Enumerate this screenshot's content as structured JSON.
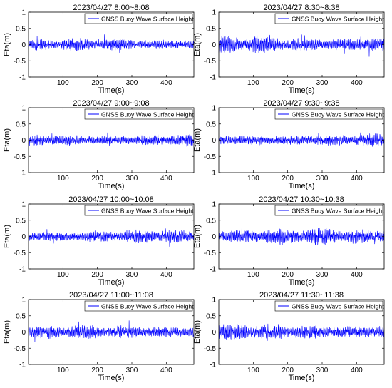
{
  "chart_data": [
    {
      "type": "line",
      "title": "2023/04/27 8:00~8:08",
      "xlabel": "Time(s)",
      "ylabel": "Eta(m)",
      "xlim": [
        0,
        480
      ],
      "ylim": [
        -1,
        1
      ],
      "xticks": [
        100,
        200,
        300,
        400
      ],
      "yticks": [
        -1,
        -0.5,
        0,
        0.5,
        1
      ],
      "grid": false,
      "legend_position": "top-right",
      "series": [
        {
          "name": "GNSS Buoy Wave Surface Height",
          "color": "#0000ff",
          "amplitude_typical": 0.15,
          "amplitude_max": 0.32,
          "sampling_note": "oscillating signal sampled densely over 480 s"
        }
      ]
    },
    {
      "type": "line",
      "title": "2023/04/27 8:30~8:38",
      "xlabel": "Time(s)",
      "ylabel": "Eta(m)",
      "xlim": [
        0,
        480
      ],
      "ylim": [
        -1,
        1
      ],
      "xticks": [
        100,
        200,
        300,
        400
      ],
      "yticks": [
        -1,
        -0.5,
        0,
        0.5,
        1
      ],
      "grid": false,
      "legend_position": "top-right",
      "series": [
        {
          "name": "GNSS Buoy Wave Surface Height",
          "color": "#0000ff",
          "amplitude_typical": 0.2,
          "amplitude_max": 0.55,
          "sampling_note": "oscillating signal sampled densely over 480 s"
        }
      ]
    },
    {
      "type": "line",
      "title": "2023/04/27 9:00~9:08",
      "xlabel": "Time(s)",
      "ylabel": "Eta(m)",
      "xlim": [
        0,
        480
      ],
      "ylim": [
        -1,
        1
      ],
      "xticks": [
        100,
        200,
        300,
        400
      ],
      "yticks": [
        -1,
        -0.5,
        0,
        0.5,
        1
      ],
      "grid": false,
      "legend_position": "top-right",
      "series": [
        {
          "name": "GNSS Buoy Wave Surface Height",
          "color": "#0000ff",
          "amplitude_typical": 0.15,
          "amplitude_max": 0.38,
          "sampling_note": "oscillating signal sampled densely over 480 s"
        }
      ]
    },
    {
      "type": "line",
      "title": "2023/04/27 9:30~9:38",
      "xlabel": "Time(s)",
      "ylabel": "Eta(m)",
      "xlim": [
        0,
        480
      ],
      "ylim": [
        -1,
        1
      ],
      "xticks": [
        100,
        200,
        300,
        400
      ],
      "yticks": [
        -1,
        -0.5,
        0,
        0.5,
        1
      ],
      "grid": false,
      "legend_position": "top-right",
      "series": [
        {
          "name": "GNSS Buoy Wave Surface Height",
          "color": "#0000ff",
          "amplitude_typical": 0.15,
          "amplitude_max": 0.42,
          "sampling_note": "oscillating signal sampled densely over 480 s"
        }
      ]
    },
    {
      "type": "line",
      "title": "2023/04/27 10:00~10:08",
      "xlabel": "Time(s)",
      "ylabel": "Eta(m)",
      "xlim": [
        0,
        480
      ],
      "ylim": [
        -1,
        1
      ],
      "xticks": [
        100,
        200,
        300,
        400
      ],
      "yticks": [
        -1,
        -0.5,
        0,
        0.5,
        1
      ],
      "grid": false,
      "legend_position": "top-right",
      "series": [
        {
          "name": "GNSS Buoy Wave Surface Height",
          "color": "#0000ff",
          "amplitude_typical": 0.16,
          "amplitude_max": 0.4,
          "sampling_note": "oscillating signal sampled densely over 480 s"
        }
      ]
    },
    {
      "type": "line",
      "title": "2023/04/27 10:30~10:38",
      "xlabel": "Time(s)",
      "ylabel": "Eta(m)",
      "xlim": [
        0,
        480
      ],
      "ylim": [
        -1,
        1
      ],
      "xticks": [
        100,
        200,
        300,
        400
      ],
      "yticks": [
        -1,
        -0.5,
        0,
        0.5,
        1
      ],
      "grid": false,
      "legend_position": "top-right",
      "series": [
        {
          "name": "GNSS Buoy Wave Surface Height",
          "color": "#0000ff",
          "amplitude_typical": 0.2,
          "amplitude_max": 0.5,
          "sampling_note": "oscillating signal sampled densely over 480 s"
        }
      ]
    },
    {
      "type": "line",
      "title": "2023/04/27 11:00~11:08",
      "xlabel": "Time(s)",
      "ylabel": "Eta(m)",
      "xlim": [
        0,
        480
      ],
      "ylim": [
        -1,
        1
      ],
      "xticks": [
        100,
        200,
        300,
        400
      ],
      "yticks": [
        -1,
        -0.5,
        0,
        0.5,
        1
      ],
      "grid": false,
      "legend_position": "top-right",
      "series": [
        {
          "name": "GNSS Buoy Wave Surface Height",
          "color": "#0000ff",
          "amplitude_typical": 0.17,
          "amplitude_max": 0.6,
          "sampling_note": "oscillating signal sampled densely over 480 s"
        }
      ]
    },
    {
      "type": "line",
      "title": "2023/04/27 11:30~11:38",
      "xlabel": "Time(s)",
      "ylabel": "Eta(m)",
      "xlim": [
        0,
        480
      ],
      "ylim": [
        -1,
        1
      ],
      "xticks": [
        100,
        200,
        300,
        400
      ],
      "yticks": [
        -1,
        -0.5,
        0,
        0.5,
        1
      ],
      "grid": false,
      "legend_position": "top-right",
      "series": [
        {
          "name": "GNSS Buoy Wave Surface Height",
          "color": "#0000ff",
          "amplitude_typical": 0.2,
          "amplitude_max": 0.6,
          "sampling_note": "oscillating signal sampled densely over 480 s"
        }
      ]
    }
  ]
}
